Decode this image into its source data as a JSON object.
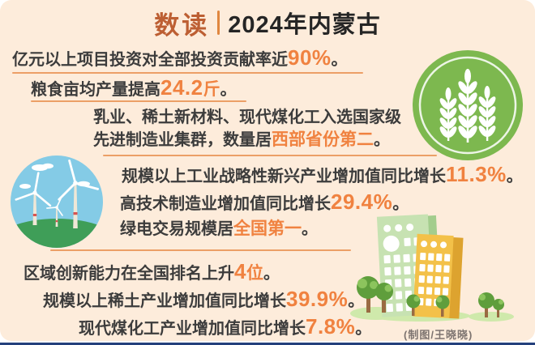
{
  "header": {
    "brand": "数读",
    "title": "2024年内蒙古"
  },
  "lines": [
    {
      "segments": [
        {
          "t": "亿元以上项目投资对全部投资贡献率近",
          "s": "normal"
        },
        {
          "t": "90%",
          "s": "num"
        },
        {
          "t": "。",
          "s": "normal"
        }
      ]
    },
    {
      "segments": [
        {
          "t": "粮食亩均产量提高",
          "s": "normal"
        },
        {
          "t": "24.2",
          "s": "num"
        },
        {
          "t": "斤",
          "s": "em"
        },
        {
          "t": "。",
          "s": "normal"
        }
      ]
    },
    {
      "segments": [
        {
          "t": "乳业、稀土新材料、现代煤化工入选国家级",
          "s": "normal"
        }
      ]
    },
    {
      "segments": [
        {
          "t": "先进制造业集群，数量居",
          "s": "normal"
        },
        {
          "t": "西部省份第二",
          "s": "em"
        },
        {
          "t": "。",
          "s": "normal"
        }
      ]
    },
    {
      "segments": [
        {
          "t": "规模以上工业战略性新兴产业增加值同比增长",
          "s": "normal"
        },
        {
          "t": "11.3%",
          "s": "num"
        },
        {
          "t": "。",
          "s": "normal"
        }
      ]
    },
    {
      "segments": [
        {
          "t": "高技术制造业增加值同比增长",
          "s": "normal"
        },
        {
          "t": "29.4%",
          "s": "num"
        },
        {
          "t": "。",
          "s": "normal"
        }
      ]
    },
    {
      "segments": [
        {
          "t": "绿电交易规模居",
          "s": "normal"
        },
        {
          "t": "全国第一",
          "s": "em"
        },
        {
          "t": "。",
          "s": "normal"
        }
      ]
    },
    {
      "segments": [
        {
          "t": "区域创新能力在全国排名上升",
          "s": "normal"
        },
        {
          "t": "4",
          "s": "num"
        },
        {
          "t": "位",
          "s": "em"
        },
        {
          "t": "。",
          "s": "normal"
        }
      ]
    },
    {
      "segments": [
        {
          "t": "规模以上稀土产业增加值同比增长",
          "s": "normal"
        },
        {
          "t": "39.9%",
          "s": "num"
        },
        {
          "t": "。",
          "s": "normal"
        }
      ]
    },
    {
      "segments": [
        {
          "t": "现代煤化工产业增加值同比增长",
          "s": "normal"
        },
        {
          "t": "7.8%",
          "s": "num"
        },
        {
          "t": "。",
          "s": "normal"
        }
      ]
    }
  ],
  "credit": "(制图/王晓晓)",
  "icons": {
    "wheat": "wheat-ears-icon",
    "wind": "wind-turbines-icon",
    "city": "city-buildings-icon"
  },
  "colors": {
    "background": "#fdecdb",
    "accent_orange": "#f08240",
    "brand_orange": "#bd5f33",
    "underline_orange": "#ec9f66",
    "wheat_green": "#7db84f",
    "sky_blue": "#84cbe6",
    "grass_green": "#3f9e58",
    "bottom_bar_navy": "#24407c"
  }
}
